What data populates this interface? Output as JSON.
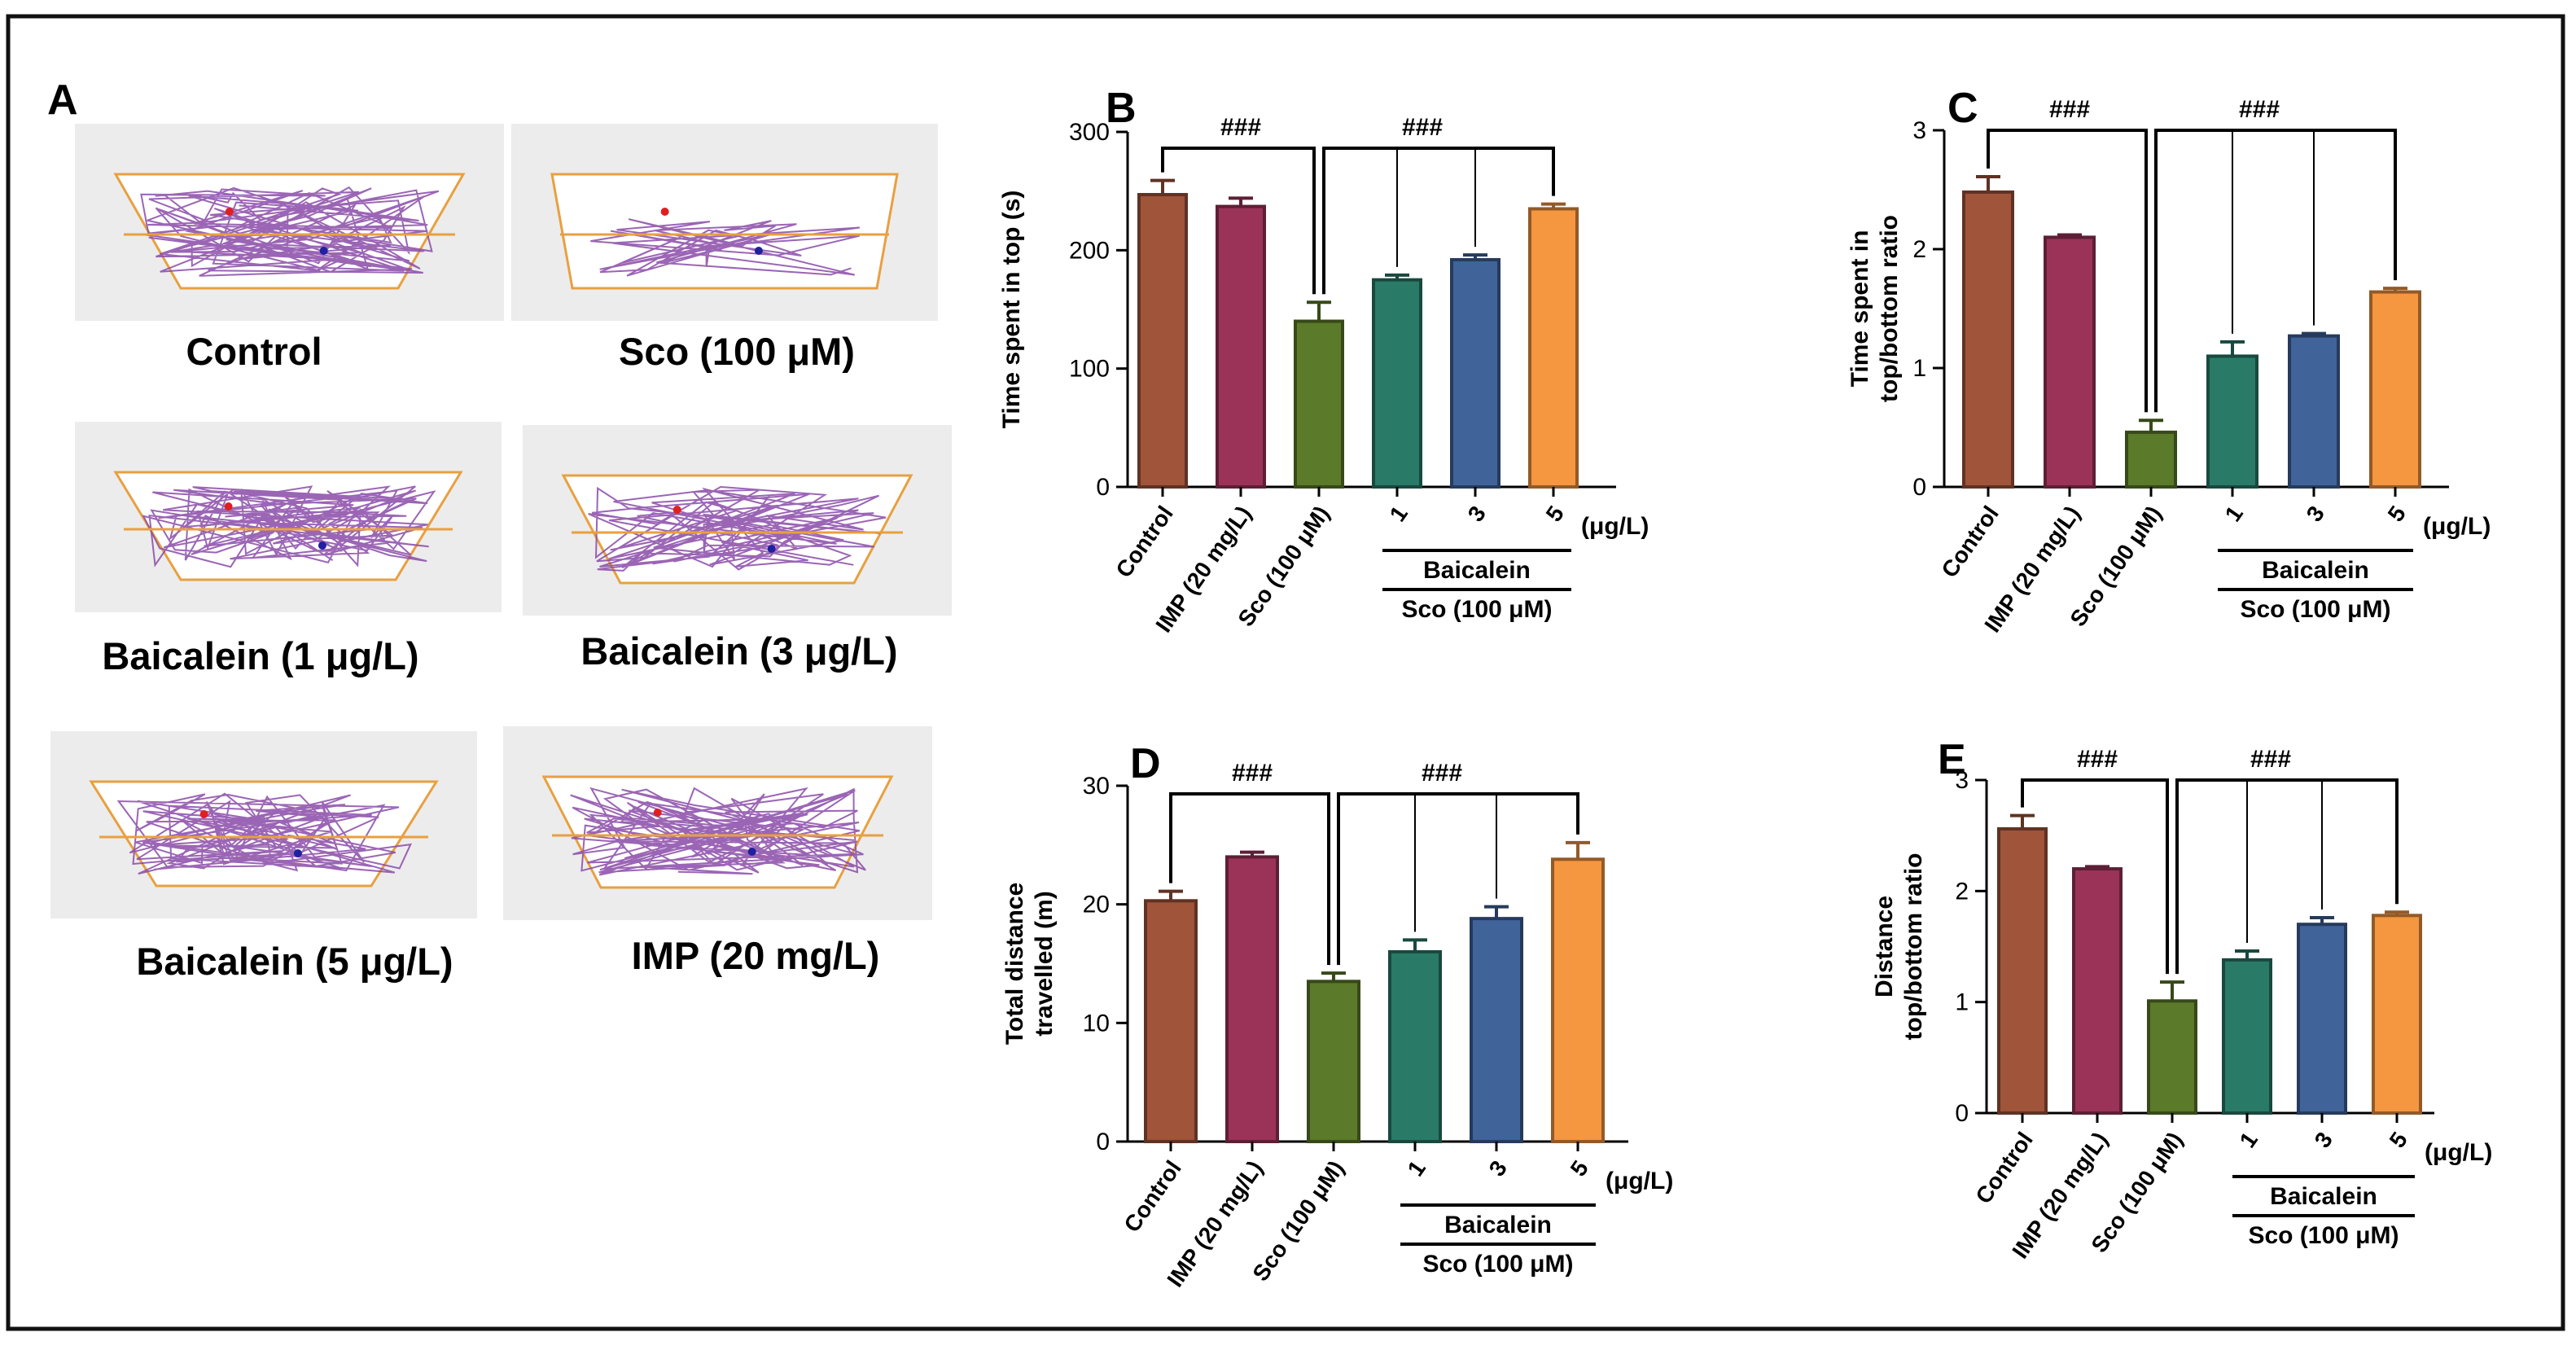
{
  "figure_labels": {
    "A": "A",
    "B": "B",
    "C": "C",
    "D": "D",
    "E": "E"
  },
  "group_names": [
    "Control",
    "IMP (20 mg/L)",
    "Sco (100 μM)",
    "1",
    "3",
    "5"
  ],
  "shared_labels": {
    "unit": "(μg/L)",
    "baicalein": "Baicalein",
    "sco": "Sco (100 μM)",
    "sig": "###"
  },
  "colors": [
    "#a0543a",
    "#9b3358",
    "#5b7a2a",
    "#2a7a68",
    "#40639a",
    "#f59641"
  ],
  "track_panels": [
    {
      "id": "control",
      "label": "Control"
    },
    {
      "id": "sco",
      "label": "Sco (100 μM)"
    },
    {
      "id": "baicalein1",
      "label": "Baicalein (1 μg/L)"
    },
    {
      "id": "baicalein3",
      "label": "Baicalein (3 μg/L)"
    },
    {
      "id": "baicalein5",
      "label": "Baicalein (5 μg/L)"
    },
    {
      "id": "imp",
      "label": "IMP (20 mg/L)"
    }
  ],
  "chart_data": [
    {
      "type": "bar",
      "panel": "B",
      "title": "",
      "ylabel": [
        "Time spent in top (s)"
      ],
      "ylim": [
        0,
        300
      ],
      "yticks": [
        0,
        100,
        200,
        300
      ],
      "categories": [
        "Control",
        "IMP (20 mg/L)",
        "Sco (100 μM)",
        "1",
        "3",
        "5"
      ],
      "values": [
        247,
        237,
        140,
        175,
        192,
        235
      ],
      "errors": [
        12,
        7,
        16,
        4,
        4,
        4
      ]
    },
    {
      "type": "bar",
      "panel": "C",
      "title": "",
      "ylabel": [
        "Time spent in",
        "top/bottom ratio"
      ],
      "ylim": [
        0,
        3
      ],
      "yticks": [
        0,
        1,
        2,
        3
      ],
      "categories": [
        "Control",
        "IMP (20 mg/L)",
        "Sco (100 μM)",
        "1",
        "3",
        "5"
      ],
      "values": [
        2.48,
        2.1,
        0.46,
        1.1,
        1.27,
        1.64
      ],
      "errors": [
        0.13,
        0.02,
        0.1,
        0.12,
        0.02,
        0.03
      ]
    },
    {
      "type": "bar",
      "panel": "D",
      "title": "",
      "ylabel": [
        "Total distance",
        "travelled (m)"
      ],
      "ylim": [
        0,
        30
      ],
      "yticks": [
        0,
        10,
        20,
        30
      ],
      "categories": [
        "Control",
        "IMP (20 mg/L)",
        "Sco (100 μM)",
        "1",
        "3",
        "5"
      ],
      "values": [
        20.3,
        24.0,
        13.5,
        16.0,
        18.8,
        23.8
      ],
      "errors": [
        0.8,
        0.4,
        0.7,
        1.0,
        1.0,
        1.4
      ]
    },
    {
      "type": "bar",
      "panel": "E",
      "title": "",
      "ylabel": [
        "Distance",
        "top/bottom ratio"
      ],
      "ylim": [
        0,
        3
      ],
      "yticks": [
        0,
        1,
        2,
        3
      ],
      "categories": [
        "Control",
        "IMP (20 mg/L)",
        "Sco (100 μM)",
        "1",
        "3",
        "5"
      ],
      "values": [
        2.56,
        2.2,
        1.01,
        1.38,
        1.7,
        1.78
      ],
      "errors": [
        0.12,
        0.02,
        0.17,
        0.08,
        0.06,
        0.03
      ]
    }
  ]
}
